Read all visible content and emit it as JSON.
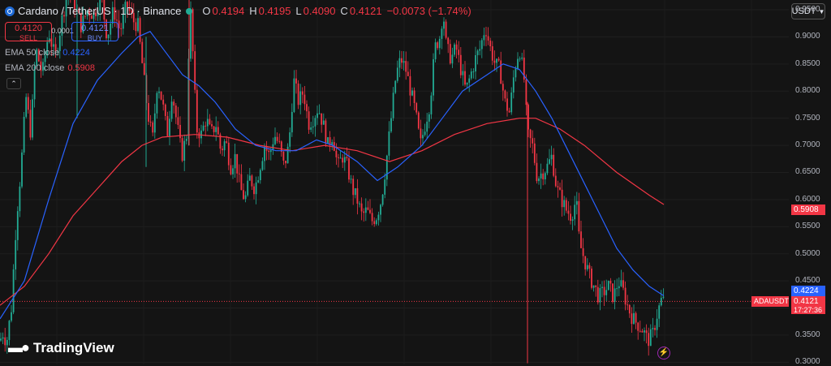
{
  "header": {
    "symbol": "Cardano / TetherUS · 1D · Binance",
    "ohlc": [
      {
        "k": "O",
        "v": "0.4194"
      },
      {
        "k": "H",
        "v": "0.4195"
      },
      {
        "k": "L",
        "v": "0.4090"
      },
      {
        "k": "C",
        "v": "0.4121"
      }
    ],
    "change": "−0.0073 (−1.74%)"
  },
  "trade": {
    "sell_price": "0.4120",
    "sell_label": "SELL",
    "spread": "0.0001",
    "buy_price": "0.4121",
    "buy_label": "BUY"
  },
  "indicators": [
    {
      "name": "EMA 50 close",
      "value": "0.4224",
      "color": "#2962ff"
    },
    {
      "name": "EMA 200 close",
      "value": "0.5908",
      "color": "#f23645"
    }
  ],
  "collapse_icon": "chevron-up-icon",
  "currency_select": {
    "value": "USDT",
    "icon": "chevron-down-icon"
  },
  "price_labels": {
    "ema200": "0.5908",
    "ema50": "0.4224",
    "symbol_tag": "ADAUSDT",
    "last_price": "0.4121",
    "countdown": "17:27:36"
  },
  "branding": {
    "text": "TradingView",
    "icon": "tradingview-logo-icon"
  },
  "bolt_icon": "lightning-icon",
  "colors": {
    "up": "#22ab94",
    "down": "#f23645",
    "ema50": "#2962ff",
    "ema200": "#f23645",
    "background": "#141414"
  },
  "chart_data": {
    "type": "candlestick",
    "y_axis": {
      "ticks": [
        "0.9500",
        "0.9000",
        "0.8500",
        "0.8000",
        "0.7500",
        "0.7000",
        "0.6500",
        "0.6000",
        "0.5500",
        "0.5000",
        "0.4500",
        "0.4000",
        "0.3500",
        "0.3000"
      ],
      "range": [
        0.296,
        0.968
      ]
    },
    "price_path": [
      [
        0,
        0.34
      ],
      [
        4,
        0.355
      ],
      [
        8,
        0.335
      ],
      [
        14,
        0.4
      ],
      [
        20,
        0.56
      ],
      [
        26,
        0.66
      ],
      [
        32,
        0.79
      ],
      [
        38,
        0.72
      ],
      [
        44,
        0.88
      ],
      [
        52,
        0.83
      ],
      [
        60,
        0.91
      ],
      [
        68,
        0.86
      ],
      [
        76,
        0.93
      ],
      [
        84,
        0.99
      ],
      [
        92,
        0.96
      ],
      [
        100,
        0.92
      ],
      [
        108,
        0.95
      ],
      [
        116,
        0.94
      ],
      [
        124,
        0.98
      ],
      [
        132,
        0.9
      ],
      [
        140,
        0.95
      ],
      [
        148,
        0.91
      ],
      [
        156,
        0.96
      ],
      [
        164,
        0.93
      ],
      [
        170,
        0.92
      ],
      [
        176,
        0.84
      ],
      [
        182,
        0.76
      ],
      [
        188,
        0.71
      ],
      [
        194,
        0.82
      ],
      [
        200,
        0.78
      ],
      [
        206,
        0.72
      ],
      [
        212,
        0.8
      ],
      [
        218,
        0.74
      ],
      [
        224,
        0.68
      ],
      [
        230,
        0.72
      ],
      [
        234,
        0.97
      ],
      [
        238,
        0.86
      ],
      [
        242,
        0.73
      ],
      [
        248,
        0.72
      ],
      [
        254,
        0.75
      ],
      [
        260,
        0.72
      ],
      [
        266,
        0.74
      ],
      [
        272,
        0.69
      ],
      [
        278,
        0.71
      ],
      [
        284,
        0.66
      ],
      [
        290,
        0.68
      ],
      [
        296,
        0.62
      ],
      [
        302,
        0.6
      ],
      [
        308,
        0.64
      ],
      [
        314,
        0.62
      ],
      [
        320,
        0.66
      ],
      [
        326,
        0.7
      ],
      [
        332,
        0.68
      ],
      [
        338,
        0.72
      ],
      [
        344,
        0.7
      ],
      [
        350,
        0.66
      ],
      [
        356,
        0.7
      ],
      [
        362,
        0.82
      ],
      [
        368,
        0.78
      ],
      [
        374,
        0.8
      ],
      [
        380,
        0.74
      ],
      [
        386,
        0.75
      ],
      [
        392,
        0.77
      ],
      [
        398,
        0.74
      ],
      [
        404,
        0.7
      ],
      [
        410,
        0.72
      ],
      [
        416,
        0.66
      ],
      [
        422,
        0.68
      ],
      [
        428,
        0.66
      ],
      [
        434,
        0.62
      ],
      [
        440,
        0.6
      ],
      [
        446,
        0.57
      ],
      [
        452,
        0.58
      ],
      [
        458,
        0.56
      ],
      [
        464,
        0.57
      ],
      [
        470,
        0.6
      ],
      [
        476,
        0.67
      ],
      [
        482,
        0.75
      ],
      [
        488,
        0.83
      ],
      [
        494,
        0.86
      ],
      [
        500,
        0.84
      ],
      [
        506,
        0.8
      ],
      [
        512,
        0.76
      ],
      [
        518,
        0.7
      ],
      [
        524,
        0.74
      ],
      [
        530,
        0.78
      ],
      [
        536,
        0.88
      ],
      [
        542,
        0.9
      ],
      [
        546,
        0.95
      ],
      [
        550,
        0.88
      ],
      [
        556,
        0.86
      ],
      [
        562,
        0.88
      ],
      [
        568,
        0.84
      ],
      [
        574,
        0.8
      ],
      [
        580,
        0.83
      ],
      [
        586,
        0.86
      ],
      [
        592,
        0.88
      ],
      [
        598,
        0.92
      ],
      [
        604,
        0.88
      ],
      [
        610,
        0.85
      ],
      [
        616,
        0.84
      ],
      [
        622,
        0.78
      ],
      [
        628,
        0.76
      ],
      [
        634,
        0.84
      ],
      [
        640,
        0.88
      ],
      [
        646,
        0.82
      ],
      [
        650,
        0.72
      ],
      [
        656,
        0.7
      ],
      [
        662,
        0.64
      ],
      [
        668,
        0.65
      ],
      [
        674,
        0.66
      ],
      [
        680,
        0.68
      ],
      [
        686,
        0.62
      ],
      [
        692,
        0.6
      ],
      [
        698,
        0.58
      ],
      [
        704,
        0.57
      ],
      [
        710,
        0.6
      ],
      [
        714,
        0.52
      ],
      [
        720,
        0.49
      ],
      [
        726,
        0.46
      ],
      [
        732,
        0.44
      ],
      [
        738,
        0.42
      ],
      [
        744,
        0.43
      ],
      [
        750,
        0.44
      ],
      [
        756,
        0.42
      ],
      [
        762,
        0.45
      ],
      [
        768,
        0.43
      ],
      [
        774,
        0.4
      ],
      [
        780,
        0.38
      ],
      [
        786,
        0.37
      ],
      [
        792,
        0.36
      ],
      [
        798,
        0.34
      ],
      [
        804,
        0.35
      ],
      [
        810,
        0.39
      ],
      [
        815,
        0.415
      ],
      [
        818,
        0.412
      ]
    ],
    "ema50_path": [
      [
        0,
        0.38
      ],
      [
        30,
        0.45
      ],
      [
        60,
        0.6
      ],
      [
        90,
        0.74
      ],
      [
        120,
        0.82
      ],
      [
        150,
        0.87
      ],
      [
        170,
        0.9
      ],
      [
        185,
        0.91
      ],
      [
        200,
        0.88
      ],
      [
        225,
        0.83
      ],
      [
        245,
        0.81
      ],
      [
        265,
        0.78
      ],
      [
        290,
        0.73
      ],
      [
        315,
        0.7
      ],
      [
        340,
        0.69
      ],
      [
        365,
        0.69
      ],
      [
        390,
        0.71
      ],
      [
        410,
        0.7
      ],
      [
        440,
        0.67
      ],
      [
        465,
        0.635
      ],
      [
        490,
        0.66
      ],
      [
        520,
        0.7
      ],
      [
        545,
        0.75
      ],
      [
        570,
        0.8
      ],
      [
        600,
        0.83
      ],
      [
        620,
        0.85
      ],
      [
        640,
        0.84
      ],
      [
        660,
        0.8
      ],
      [
        680,
        0.75
      ],
      [
        700,
        0.69
      ],
      [
        720,
        0.63
      ],
      [
        740,
        0.57
      ],
      [
        760,
        0.51
      ],
      [
        780,
        0.47
      ],
      [
        800,
        0.44
      ],
      [
        818,
        0.4224
      ]
    ],
    "ema200_path": [
      [
        0,
        0.405
      ],
      [
        30,
        0.44
      ],
      [
        60,
        0.5
      ],
      [
        90,
        0.57
      ],
      [
        120,
        0.62
      ],
      [
        150,
        0.67
      ],
      [
        175,
        0.7
      ],
      [
        200,
        0.715
      ],
      [
        240,
        0.72
      ],
      [
        280,
        0.715
      ],
      [
        320,
        0.7
      ],
      [
        360,
        0.69
      ],
      [
        400,
        0.7
      ],
      [
        440,
        0.69
      ],
      [
        480,
        0.67
      ],
      [
        520,
        0.69
      ],
      [
        560,
        0.72
      ],
      [
        600,
        0.74
      ],
      [
        640,
        0.75
      ],
      [
        660,
        0.75
      ],
      [
        690,
        0.73
      ],
      [
        720,
        0.7
      ],
      [
        760,
        0.65
      ],
      [
        800,
        0.608
      ],
      [
        818,
        0.5908
      ]
    ],
    "last_price": 0.4121
  }
}
